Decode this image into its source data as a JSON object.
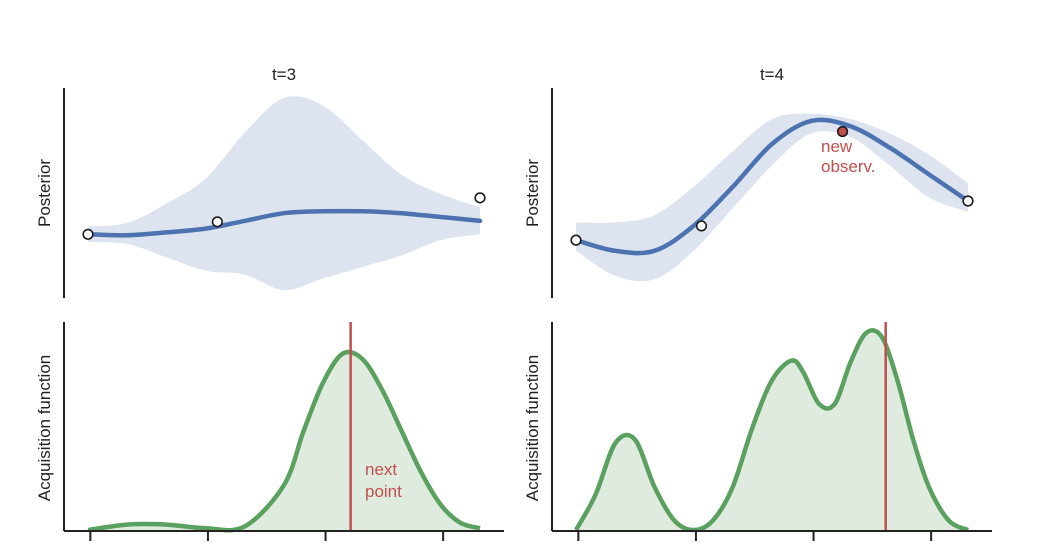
{
  "chart_data": [
    {
      "type": "line",
      "title": "t=3",
      "ylabel": "Posterior",
      "mean": {
        "x": [
          0.0,
          0.1,
          0.2,
          0.3,
          0.4,
          0.5,
          0.6,
          0.7,
          0.8,
          0.9,
          1.0
        ],
        "y": [
          0.29,
          0.285,
          0.3,
          0.32,
          0.36,
          0.4,
          0.41,
          0.41,
          0.4,
          0.38,
          0.36
        ]
      },
      "band_upper": [
        0.33,
        0.35,
        0.45,
        0.58,
        0.82,
        1.0,
        0.96,
        0.78,
        0.6,
        0.5,
        0.43
      ],
      "band_lower": [
        0.25,
        0.24,
        0.17,
        0.1,
        0.08,
        0.0,
        0.06,
        0.12,
        0.18,
        0.26,
        0.29
      ],
      "observations": [
        {
          "x": 0.0,
          "y": 0.29
        },
        {
          "x": 0.33,
          "y": 0.355
        },
        {
          "x": 1.0,
          "y": 0.48
        }
      ],
      "colors": {
        "mean": "#4c72b0",
        "band": "#dde3ef",
        "point_edge": "#1a1a1a"
      }
    },
    {
      "type": "line",
      "title": "t=4",
      "ylabel": "Posterior",
      "mean": {
        "x": [
          0.0,
          0.1,
          0.2,
          0.3,
          0.4,
          0.5,
          0.6,
          0.7,
          0.8,
          0.9,
          1.0
        ],
        "y": [
          0.28,
          0.22,
          0.22,
          0.36,
          0.58,
          0.82,
          0.95,
          0.92,
          0.8,
          0.65,
          0.5
        ]
      },
      "band_upper": [
        0.38,
        0.38,
        0.42,
        0.58,
        0.78,
        0.96,
        0.99,
        0.96,
        0.88,
        0.76,
        0.6
      ],
      "band_lower": [
        0.22,
        0.08,
        0.06,
        0.22,
        0.46,
        0.7,
        0.88,
        0.86,
        0.7,
        0.52,
        0.44
      ],
      "observations": [
        {
          "x": 0.0,
          "y": 0.28
        },
        {
          "x": 0.32,
          "y": 0.36
        },
        {
          "x": 0.68,
          "y": 0.89,
          "new": true
        },
        {
          "x": 1.0,
          "y": 0.5
        }
      ],
      "annotation": "new\nobserv.",
      "colors": {
        "mean": "#4c72b0",
        "band": "#dde3ef",
        "new_point": "#c0504d",
        "point_edge": "#1a1a1a"
      }
    },
    {
      "type": "area",
      "ylabel": "Acquisition function",
      "xticks": [
        "",
        "",
        "",
        ""
      ],
      "series": {
        "x": [
          0.0,
          0.1,
          0.2,
          0.3,
          0.4,
          0.5,
          0.55,
          0.6,
          0.65,
          0.7,
          0.75,
          0.8,
          0.85,
          0.9,
          0.95,
          1.0
        ],
        "y": [
          0.0,
          0.03,
          0.03,
          0.01,
          0.02,
          0.25,
          0.55,
          0.82,
          0.98,
          0.95,
          0.78,
          0.55,
          0.32,
          0.14,
          0.04,
          0.01
        ]
      },
      "next_point_x": 0.67,
      "annotation": "next\npoint",
      "colors": {
        "line": "#5aa05f",
        "fill": "#e0ebe0",
        "marker": "#c0504d"
      }
    },
    {
      "type": "area",
      "ylabel": "Acquisition function",
      "xticks": [
        "",
        "",
        "",
        ""
      ],
      "series": {
        "x": [
          0.0,
          0.05,
          0.1,
          0.15,
          0.2,
          0.25,
          0.3,
          0.35,
          0.4,
          0.45,
          0.5,
          0.55,
          0.58,
          0.62,
          0.66,
          0.7,
          0.74,
          0.78,
          0.82,
          0.86,
          0.9,
          0.95,
          1.0
        ],
        "y": [
          0.0,
          0.18,
          0.44,
          0.46,
          0.22,
          0.05,
          0.0,
          0.05,
          0.22,
          0.52,
          0.76,
          0.86,
          0.8,
          0.64,
          0.64,
          0.85,
          1.0,
          0.98,
          0.76,
          0.46,
          0.22,
          0.05,
          0.0
        ]
      },
      "next_point_x": 0.79,
      "colors": {
        "line": "#5aa05f",
        "fill": "#e0ebe0",
        "marker": "#c0504d"
      }
    }
  ]
}
